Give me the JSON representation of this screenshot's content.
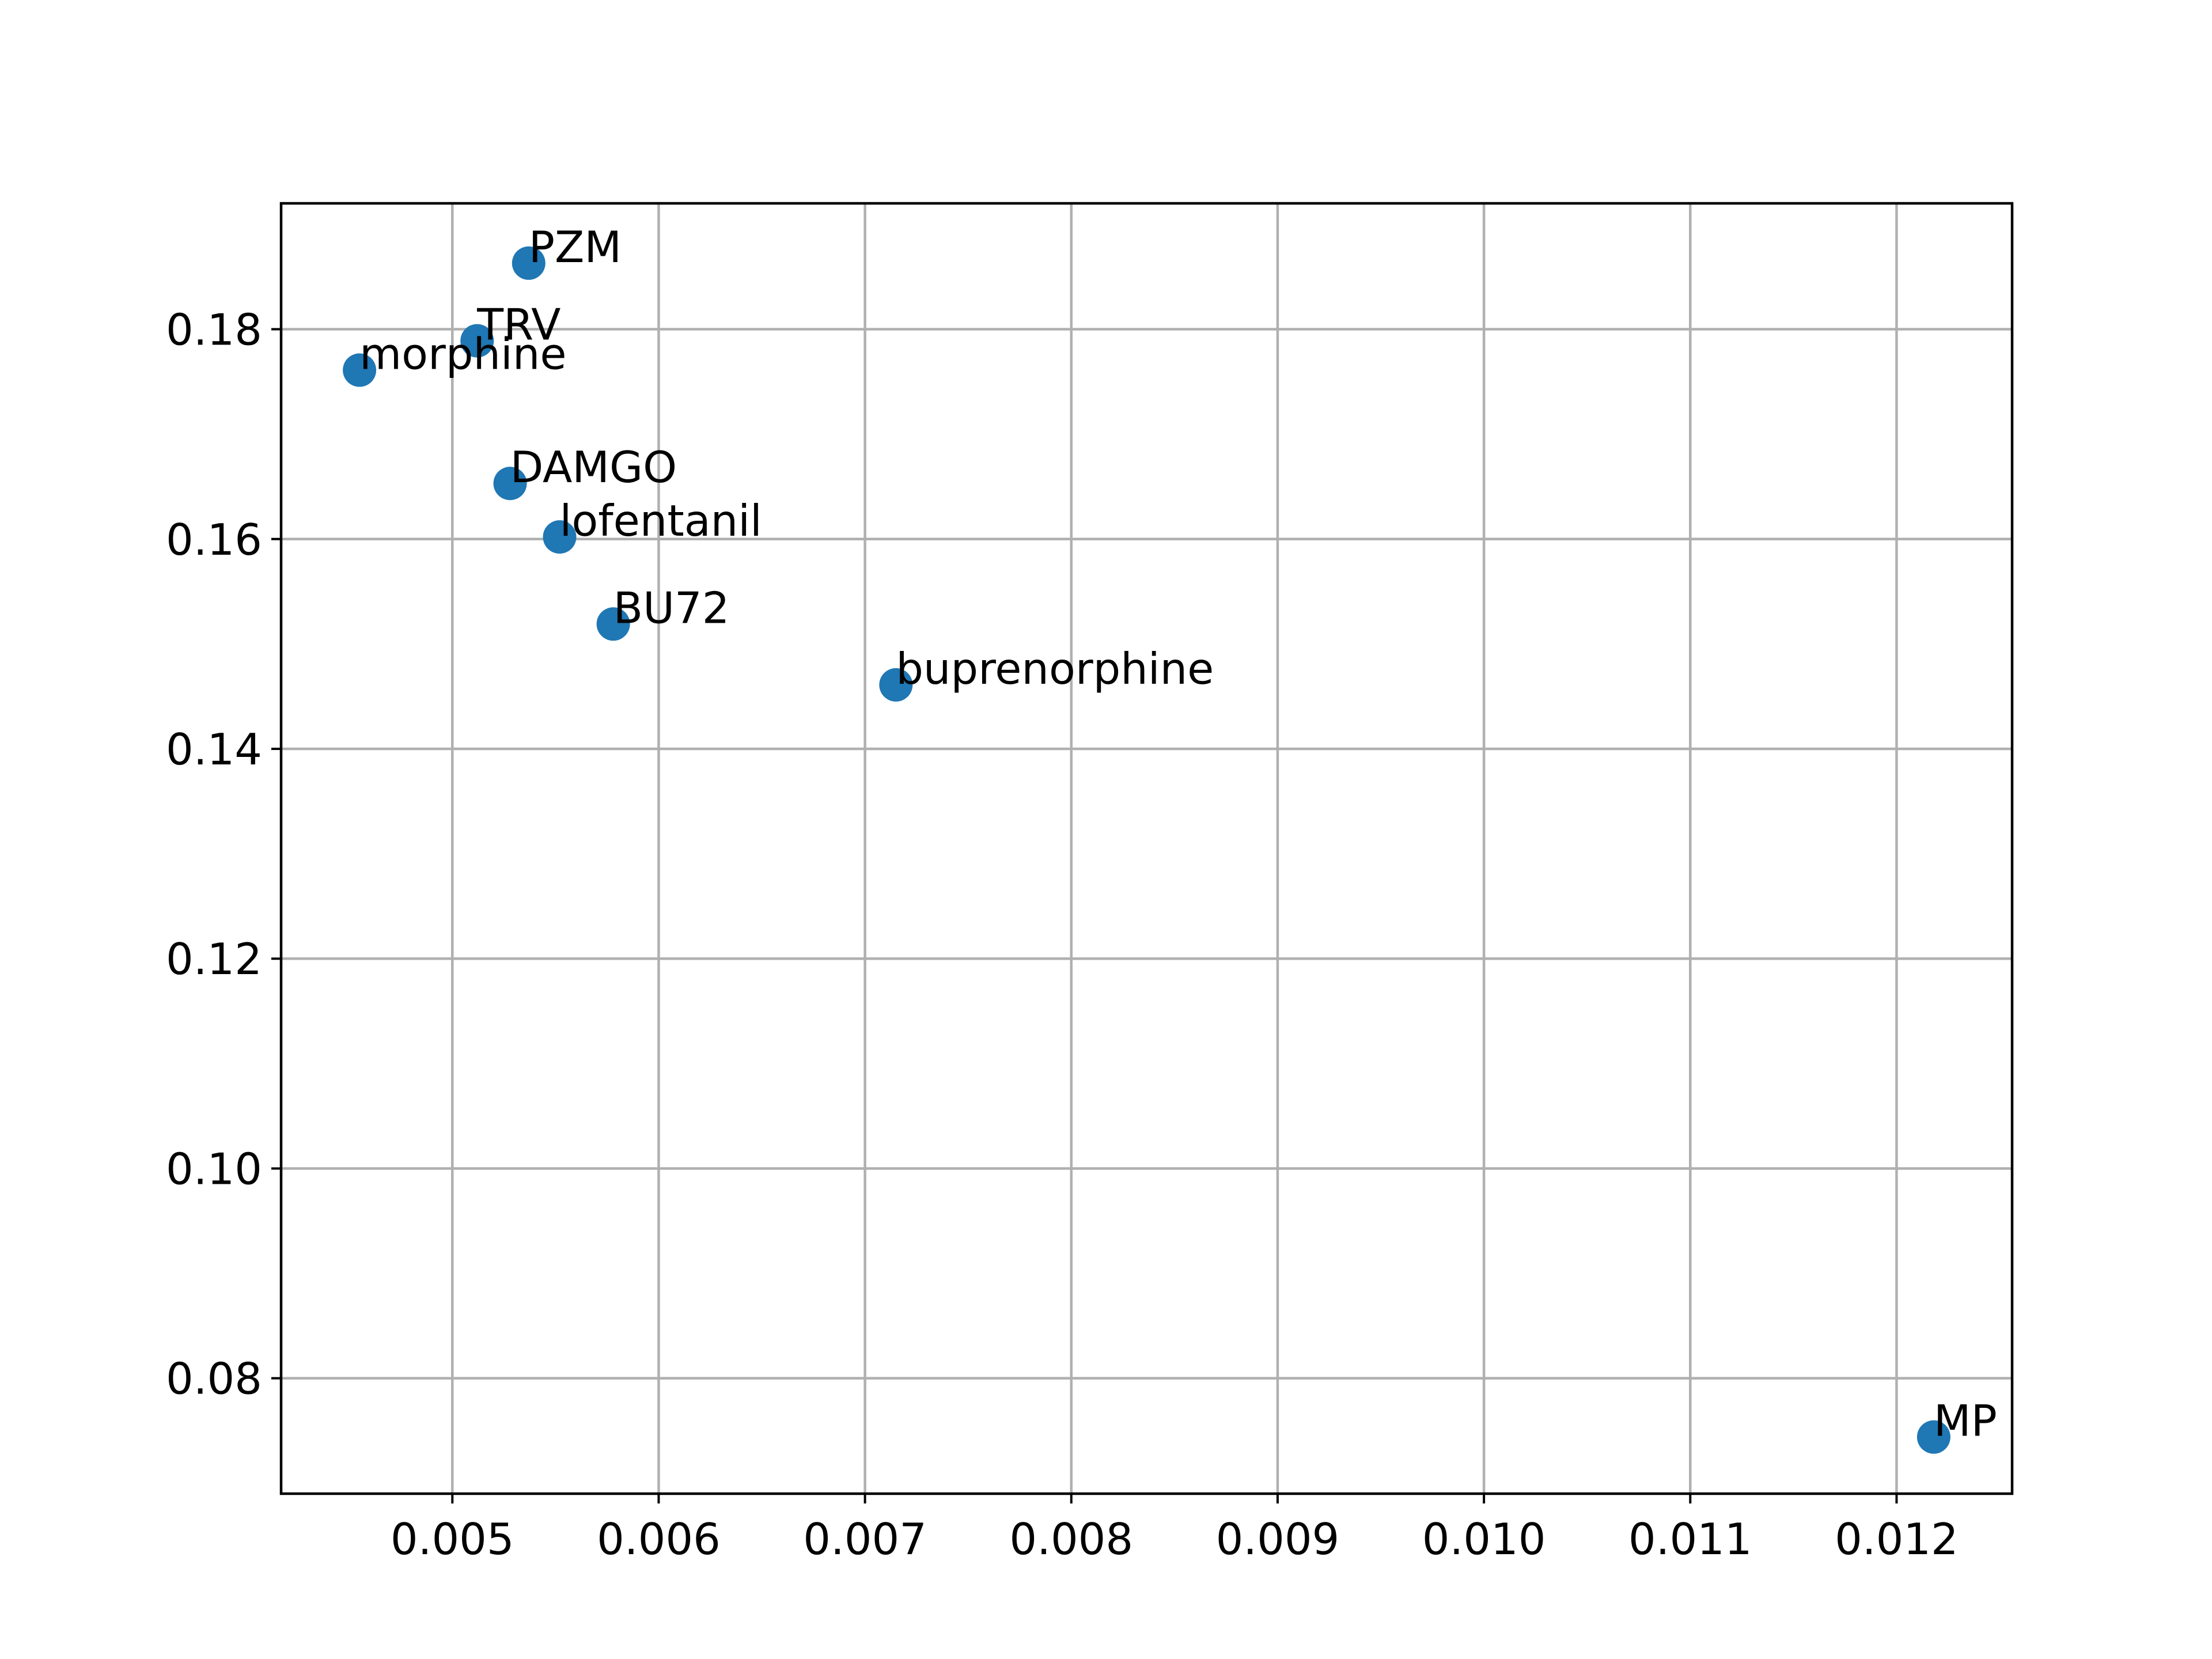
{
  "chart_data": {
    "type": "scatter",
    "title": "",
    "xlabel": "",
    "ylabel": "",
    "grid": true,
    "xlim": [
      0.00417,
      0.01256
    ],
    "ylim": [
      0.069,
      0.192
    ],
    "xticks": [
      0.005,
      0.006,
      0.007,
      0.008,
      0.009,
      0.01,
      0.011,
      0.012
    ],
    "xtick_labels": [
      "0.005",
      "0.006",
      "0.007",
      "0.008",
      "0.009",
      "0.010",
      "0.011",
      "0.012"
    ],
    "yticks": [
      0.08,
      0.1,
      0.12,
      0.14,
      0.16,
      0.18
    ],
    "ytick_labels": [
      "0.08",
      "0.10",
      "0.12",
      "0.14",
      "0.16",
      "0.18"
    ],
    "marker_color": "#1f77b4",
    "points": [
      {
        "label": "PZM",
        "x": 0.00537,
        "y": 0.1863
      },
      {
        "label": "TRV",
        "x": 0.00512,
        "y": 0.1789
      },
      {
        "label": "morphine",
        "x": 0.00455,
        "y": 0.1761
      },
      {
        "label": "DAMGO",
        "x": 0.00528,
        "y": 0.1653
      },
      {
        "label": "lofentanil",
        "x": 0.00552,
        "y": 0.1602
      },
      {
        "label": "BU72",
        "x": 0.00578,
        "y": 0.1519
      },
      {
        "label": "buprenorphine",
        "x": 0.00715,
        "y": 0.1461
      },
      {
        "label": "MP",
        "x": 0.01218,
        "y": 0.0744
      }
    ]
  }
}
